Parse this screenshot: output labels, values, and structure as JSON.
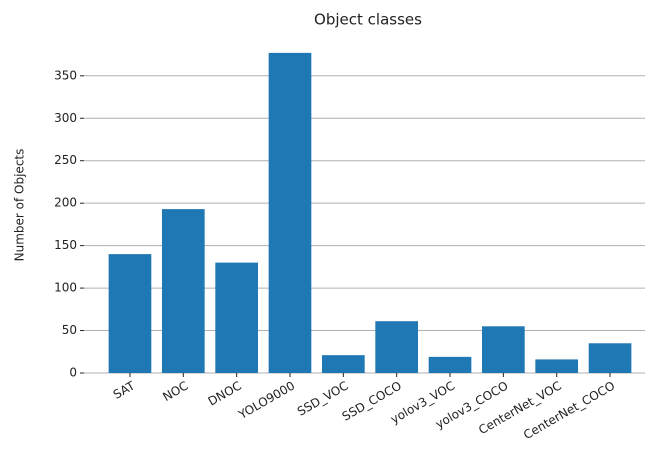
{
  "chart_data": {
    "type": "bar",
    "title": "Object classes",
    "y_label": "Number of Objects",
    "categories": [
      "SAT",
      "NOC",
      "DNOC",
      "YOLO9000",
      "SSD_VOC",
      "SSD_COCO",
      "yolov3_VOC",
      "yolov3_COCO",
      "CenterNet_VOC",
      "CenterNet_COCO"
    ],
    "values": [
      140,
      193,
      130,
      377,
      21,
      61,
      19,
      55,
      16,
      35
    ],
    "color": "#1f77b4",
    "ylim": [
      0,
      395
    ],
    "yticks": [
      0,
      50,
      100,
      150,
      200,
      250,
      300,
      350
    ],
    "grid": true
  }
}
